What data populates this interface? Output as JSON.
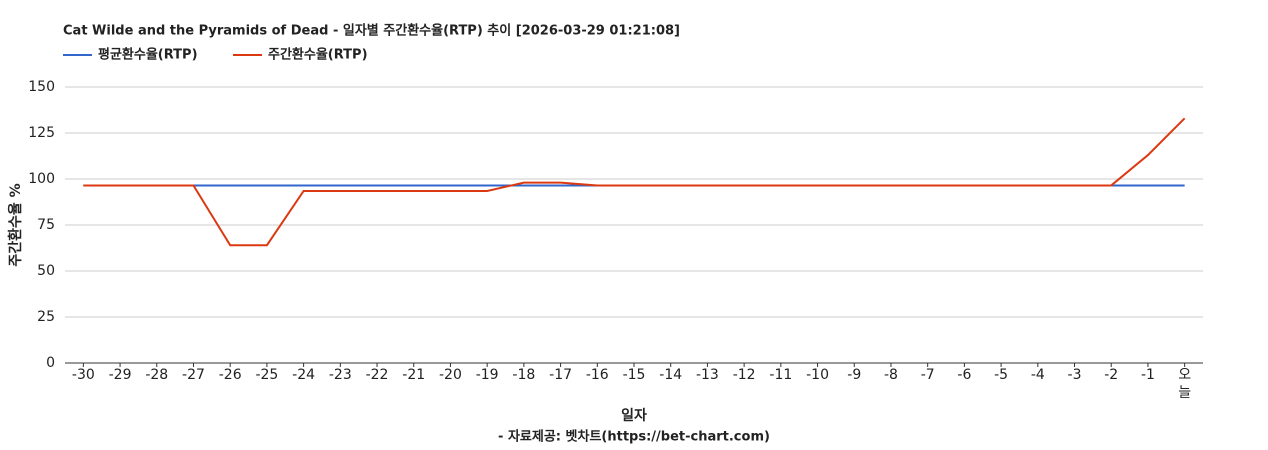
{
  "chart_data": {
    "type": "line",
    "title": "Cat Wilde and the Pyramids of Dead - 일자별 주간환수율(RTP) 추이 [2026-03-29 01:21:08]",
    "x_label": "일자",
    "y_label": "주간환수율 %",
    "source": "- 자료제공: 벳차트(https://bet-chart.com)",
    "categories": [
      "-30",
      "-29",
      "-28",
      "-27",
      "-26",
      "-25",
      "-24",
      "-23",
      "-22",
      "-21",
      "-20",
      "-19",
      "-18",
      "-17",
      "-16",
      "-15",
      "-14",
      "-13",
      "-12",
      "-11",
      "-10",
      "-9",
      "-8",
      "-7",
      "-6",
      "-5",
      "-4",
      "-3",
      "-2",
      "-1",
      "오늘"
    ],
    "series": [
      {
        "name": "평균환수율(RTP)",
        "color": "#3366cc",
        "values": [
          96.5,
          96.5,
          96.5,
          96.5,
          96.5,
          96.5,
          96.5,
          96.5,
          96.5,
          96.5,
          96.5,
          96.5,
          96.5,
          96.5,
          96.5,
          96.5,
          96.5,
          96.5,
          96.5,
          96.5,
          96.5,
          96.5,
          96.5,
          96.5,
          96.5,
          96.5,
          96.5,
          96.5,
          96.5,
          96.5,
          96.5
        ]
      },
      {
        "name": "주간환수율(RTP)",
        "color": "#dc3912",
        "values": [
          96.5,
          96.5,
          96.5,
          96.5,
          64,
          64,
          93.5,
          93.5,
          93.5,
          93.5,
          93.5,
          93.5,
          98,
          98,
          96.5,
          96.5,
          96.5,
          96.5,
          96.5,
          96.5,
          96.5,
          96.5,
          96.5,
          96.5,
          96.5,
          96.5,
          96.5,
          96.5,
          96.5,
          113,
          133
        ]
      }
    ],
    "ylim": [
      0,
      150
    ],
    "yticks": [
      0,
      25,
      50,
      75,
      100,
      125,
      150
    ],
    "grid": true
  }
}
